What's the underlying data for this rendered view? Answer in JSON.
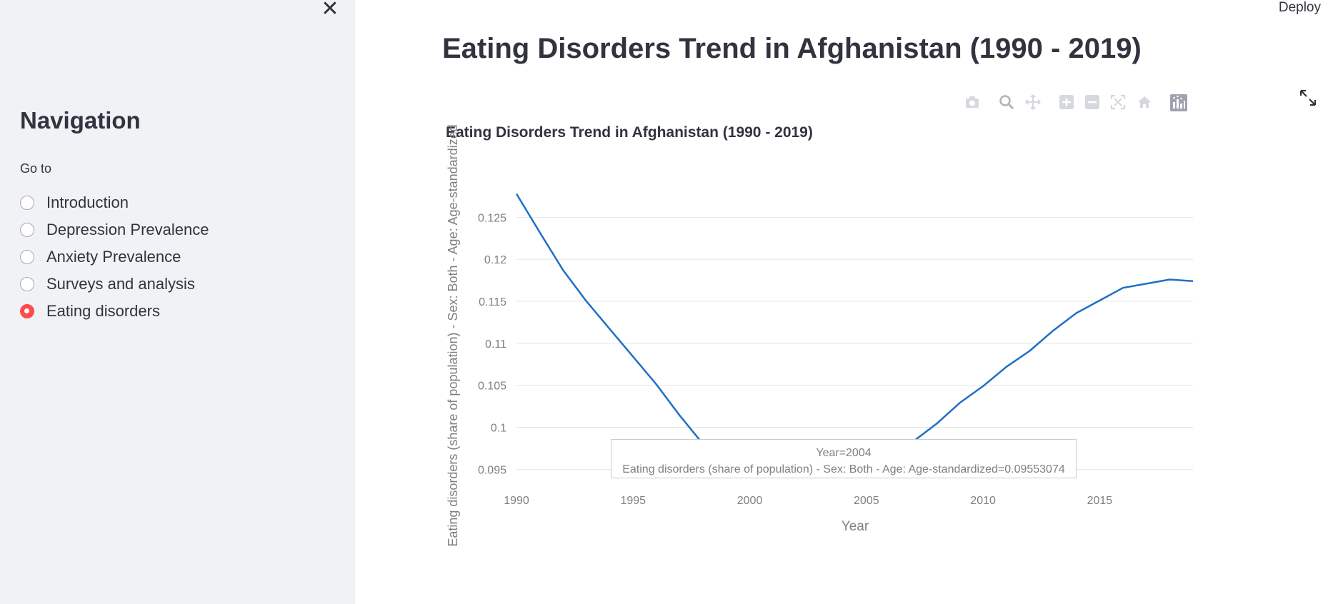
{
  "sidebar": {
    "nav_title": "Navigation",
    "goto_label": "Go to",
    "options": [
      {
        "label": "Introduction",
        "selected": false
      },
      {
        "label": "Depression Prevalence",
        "selected": false
      },
      {
        "label": "Anxiety Prevalence",
        "selected": false
      },
      {
        "label": "Surveys and analysis",
        "selected": false
      },
      {
        "label": "Eating disorders",
        "selected": true
      }
    ]
  },
  "header": {
    "deploy_label": "Deploy"
  },
  "main": {
    "page_title": "Eating Disorders Trend in Afghanistan (1990 - 2019)"
  },
  "icons": {
    "close": "close-icon",
    "expand": "expand-icon",
    "modebar": [
      "camera-icon",
      "zoom-icon",
      "pan-icon",
      "zoom-in-icon",
      "zoom-out-icon",
      "autoscale-icon",
      "reset-axes-icon",
      "plotly-logo-icon"
    ]
  },
  "colors": {
    "accent": "#ff4b4b",
    "line": "#1f6fc6",
    "sidebar_bg": "#f0f2f6"
  },
  "chart_data": {
    "type": "line",
    "title": "Eating Disorders Trend in Afghanistan (1990 - 2019)",
    "xlabel": "Year",
    "ylabel": "Eating disorders (share of population) - Sex: Both - Age: Age-standardized",
    "xlim": [
      1990,
      2019
    ],
    "ylim": [
      0.0935,
      0.1275
    ],
    "x_ticks": [
      1990,
      1995,
      2000,
      2005,
      2010,
      2015
    ],
    "y_ticks": [
      0.095,
      0.1,
      0.105,
      0.11,
      0.115,
      0.12,
      0.125
    ],
    "y_tick_labels": [
      "0.095",
      "0.1",
      "0.105",
      "0.11",
      "0.115",
      "0.12",
      "0.125"
    ],
    "grid": true,
    "series": [
      {
        "x": [
          1990,
          1991,
          1992,
          1993,
          1994,
          1995,
          1996,
          1997,
          1998,
          1999,
          2000,
          2001,
          2002,
          2003,
          2004,
          2005,
          2006,
          2007,
          2008,
          2009,
          2010,
          2011,
          2012,
          2013,
          2014,
          2015,
          2016,
          2017,
          2018,
          2019
        ],
        "values": [
          0.1278,
          0.1232,
          0.1187,
          0.115,
          0.1117,
          0.1084,
          0.1051,
          0.1014,
          0.098,
          0.0962,
          0.0958,
          0.0956,
          0.0955,
          0.0955,
          0.09553,
          0.0957,
          0.0966,
          0.0983,
          0.1004,
          0.1029,
          0.1049,
          0.1072,
          0.1091,
          0.1115,
          0.1136,
          0.1151,
          0.1166,
          0.1171,
          0.1176,
          0.1174
        ]
      }
    ],
    "hover": {
      "line1": "Year=2004",
      "line2": "Eating disorders (share of population) - Sex: Both - Age: Age-standardized=0.09553074"
    }
  }
}
